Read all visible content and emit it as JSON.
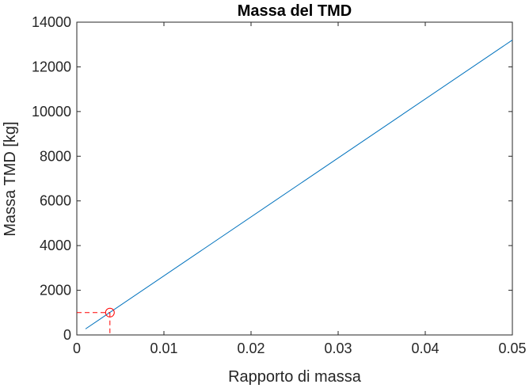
{
  "chart_data": {
    "type": "line",
    "title": "Massa del TMD",
    "xlabel": "Rapporto di massa",
    "ylabel": "Massa TMD [kg]",
    "xlim": [
      0,
      0.05
    ],
    "ylim": [
      0,
      14000
    ],
    "x_ticks": [
      0,
      0.01,
      0.02,
      0.03,
      0.04,
      0.05
    ],
    "x_tick_labels": [
      "0",
      "0.01",
      "0.02",
      "0.03",
      "0.04",
      "0.05"
    ],
    "y_ticks": [
      0,
      2000,
      4000,
      6000,
      8000,
      10000,
      12000,
      14000
    ],
    "y_tick_labels": [
      "0",
      "2000",
      "4000",
      "6000",
      "8000",
      "10000",
      "12000",
      "14000"
    ],
    "grid": false,
    "series": [
      {
        "x": [
          0.001,
          0.05
        ],
        "y": [
          270,
          13200
        ],
        "color": "#0072BD"
      }
    ],
    "marker": {
      "x": 0.0038,
      "y": 1000,
      "shape": "circle",
      "color": "#FF0000",
      "guide_lines": "dashed"
    }
  }
}
